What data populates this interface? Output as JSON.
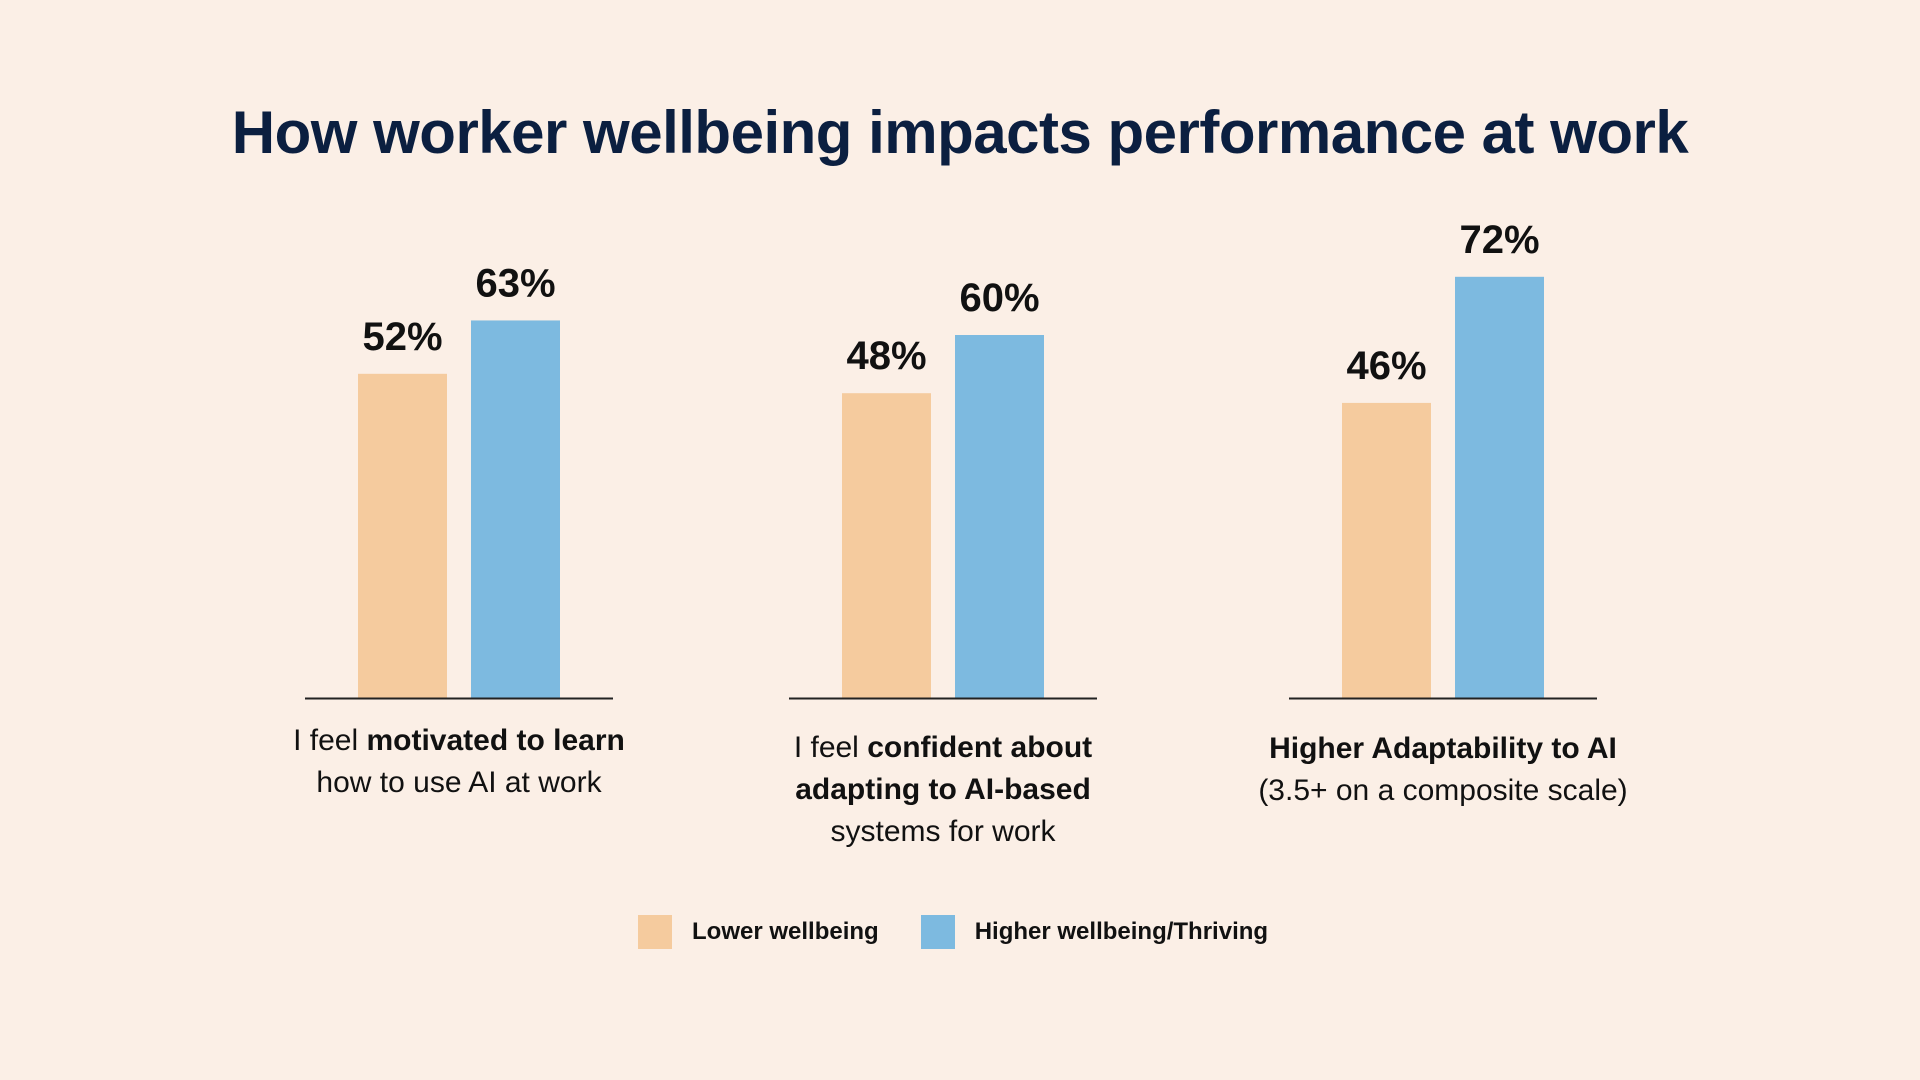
{
  "title": "How worker wellbeing impacts performance at work",
  "colors": {
    "background": "#FBEFE6",
    "title": "#0B1F40",
    "lower": "#F5CB9E",
    "higher": "#7DBAE0",
    "axis": "#222222"
  },
  "chart_data": {
    "type": "bar",
    "title": "How worker wellbeing impacts performance at work",
    "xlabel": "",
    "ylabel": "",
    "unit": "%",
    "ylim": [
      0,
      100
    ],
    "grid": false,
    "legend_position": "bottom-center",
    "categories": [
      "I feel motivated to learn how to use AI at work",
      "I feel confident about adapting to AI-based systems for work",
      "Higher Adaptability to AI (3.5+ on a composite scale)"
    ],
    "series": [
      {
        "name": "Lower wellbeing",
        "color": "#F5CB9E",
        "values": [
          52,
          48,
          46
        ],
        "labels": [
          "52%",
          "48%",
          "46%"
        ]
      },
      {
        "name": "Higher wellbeing/Thriving",
        "color": "#7DBAE0",
        "values": [
          63,
          60,
          72
        ],
        "labels": [
          "63%",
          "60%",
          "72%"
        ]
      }
    ]
  },
  "category_labels": [
    {
      "lines": [
        [
          {
            "t": "I feel ",
            "b": false
          },
          {
            "t": "motivated to learn",
            "b": true
          }
        ],
        [
          {
            "t": "how to use AI at work",
            "b": false
          }
        ]
      ]
    },
    {
      "lines": [
        [
          {
            "t": "I feel ",
            "b": false
          },
          {
            "t": "confident about",
            "b": true
          }
        ],
        [
          {
            "t": "adapting to AI-based",
            "b": true
          }
        ],
        [
          {
            "t": "systems for work",
            "b": false
          }
        ]
      ]
    },
    {
      "lines": [
        [
          {
            "t": "Higher Adaptability to AI",
            "b": true
          }
        ],
        [
          {
            "t": "(3.5+ on a composite scale)",
            "b": false
          }
        ]
      ]
    }
  ],
  "legend": [
    {
      "label": "Lower wellbeing",
      "color": "#F5CB9E"
    },
    {
      "label": "Higher wellbeing/Thriving",
      "color": "#7DBAE0"
    }
  ]
}
